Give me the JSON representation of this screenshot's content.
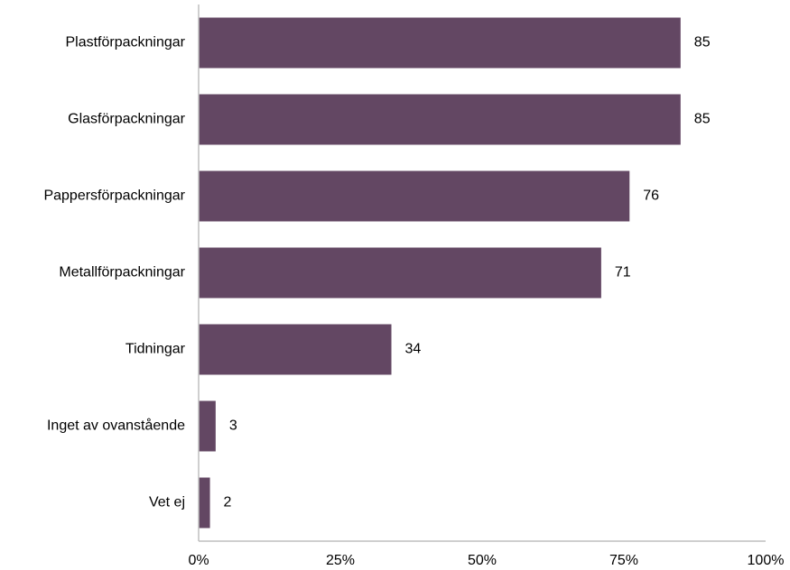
{
  "chart_data": {
    "type": "bar",
    "orientation": "horizontal",
    "categories": [
      "Plastförpackningar",
      "Glasförpackningar",
      "Pappersförpackningar",
      "Metallförpackningar",
      "Tidningar",
      "Inget av ovanstående",
      "Vet ej"
    ],
    "values": [
      85,
      85,
      76,
      71,
      34,
      3,
      2
    ],
    "value_labels": [
      "85",
      "85",
      "76",
      "71",
      "34",
      "3",
      "2"
    ],
    "xlim": [
      0,
      100
    ],
    "xticks": [
      0,
      25,
      50,
      75,
      100
    ],
    "xtick_labels": [
      "0%",
      "25%",
      "50%",
      "75%",
      "100%"
    ],
    "grid": false,
    "legend": "none",
    "bar_color": "#634763"
  }
}
